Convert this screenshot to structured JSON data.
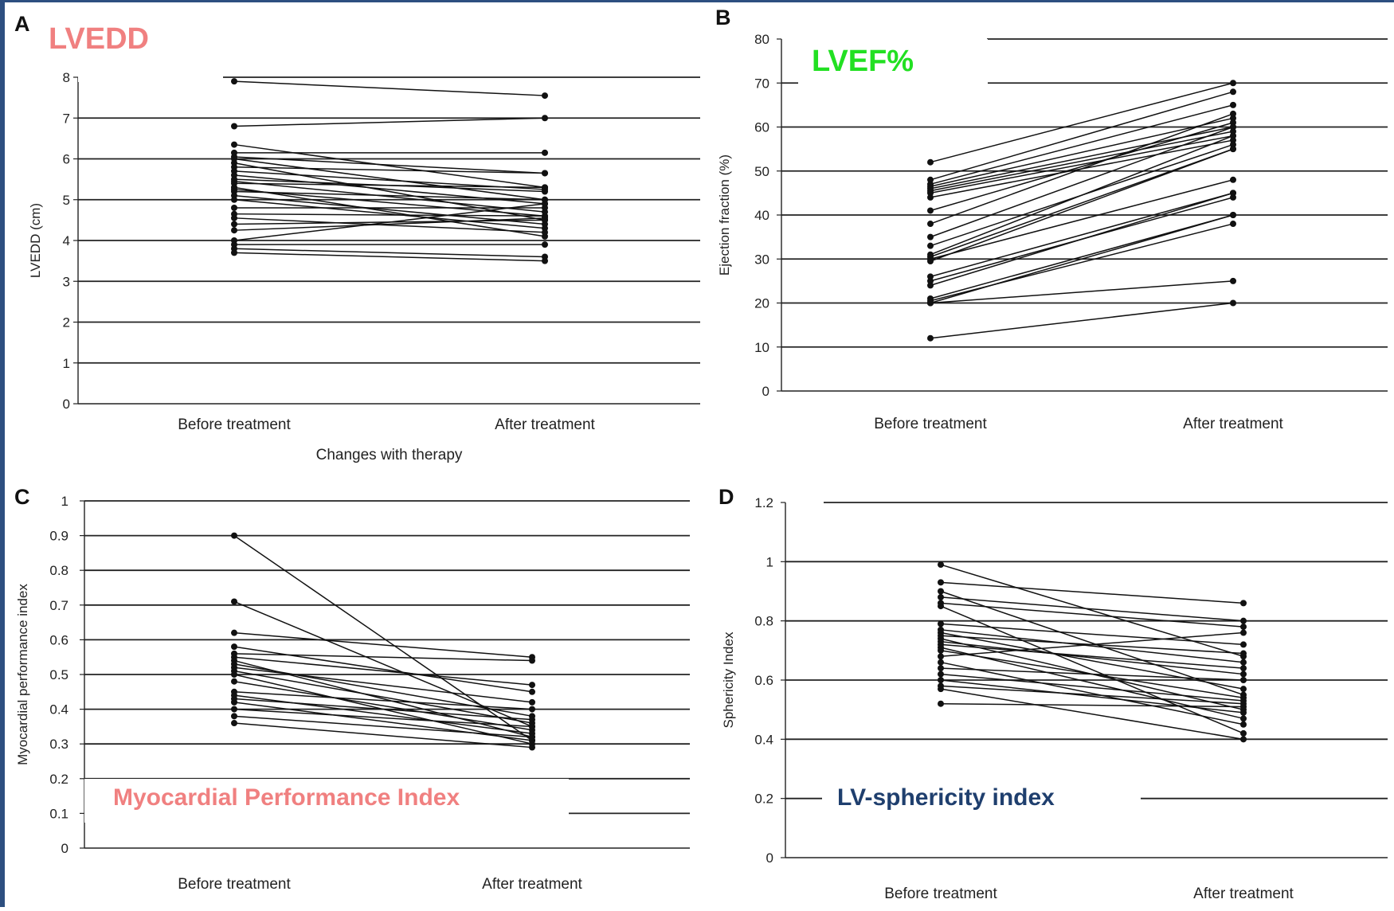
{
  "page": {
    "accent": "#2d4f80"
  },
  "chart_data": [
    {
      "id": "A",
      "type": "line",
      "panel_label": "A",
      "title": "LVEDD",
      "title_color": "#f08080",
      "ylabel": "LVEDD (cm)",
      "xlabel": "Changes with therapy",
      "categories": [
        "Before treatment",
        "After treatment"
      ],
      "ylim": [
        0,
        8
      ],
      "yticks": [
        0,
        1,
        2,
        3,
        4,
        5,
        6,
        7,
        8
      ],
      "tick_labels": [
        "0",
        "1",
        "2",
        "3",
        "4",
        "5",
        "6",
        "7",
        "8"
      ],
      "grid": true,
      "pairs": [
        [
          7.9,
          7.55
        ],
        [
          6.8,
          7.0
        ],
        [
          6.35,
          5.3
        ],
        [
          6.15,
          6.15
        ],
        [
          6.05,
          5.65
        ],
        [
          6.0,
          5.0
        ],
        [
          5.9,
          4.5
        ],
        [
          5.8,
          5.65
        ],
        [
          5.7,
          5.25
        ],
        [
          5.6,
          4.9
        ],
        [
          5.5,
          5.2
        ],
        [
          5.45,
          4.7
        ],
        [
          5.4,
          5.3
        ],
        [
          5.3,
          4.1
        ],
        [
          5.25,
          4.6
        ],
        [
          5.2,
          5.0
        ],
        [
          5.1,
          4.4
        ],
        [
          5.0,
          4.3
        ],
        [
          4.8,
          4.8
        ],
        [
          4.65,
          4.6
        ],
        [
          4.55,
          4.2
        ],
        [
          4.4,
          4.5
        ],
        [
          4.25,
          4.55
        ],
        [
          4.0,
          4.9
        ],
        [
          3.9,
          3.9
        ],
        [
          3.8,
          3.6
        ],
        [
          3.7,
          3.5
        ]
      ]
    },
    {
      "id": "B",
      "type": "line",
      "panel_label": "B",
      "title": "LVEF%",
      "title_color": "#22e022",
      "ylabel": "Ejection fraction (%)",
      "xlabel": "",
      "categories": [
        "Before treatment",
        "After treatment"
      ],
      "ylim": [
        0,
        80
      ],
      "yticks": [
        0,
        10,
        20,
        30,
        40,
        50,
        60,
        70,
        80
      ],
      "tick_labels": [
        "0",
        "10",
        "20",
        "30",
        "40",
        "50",
        "60",
        "70",
        "80"
      ],
      "grid": true,
      "pairs": [
        [
          52,
          70
        ],
        [
          48,
          68
        ],
        [
          47,
          65
        ],
        [
          46.5,
          62
        ],
        [
          46,
          60
        ],
        [
          45.5,
          59
        ],
        [
          45,
          58
        ],
        [
          44,
          57
        ],
        [
          41,
          61
        ],
        [
          38,
          63
        ],
        [
          35,
          60
        ],
        [
          33,
          56
        ],
        [
          31,
          58
        ],
        [
          30.5,
          55
        ],
        [
          30,
          48
        ],
        [
          29.5,
          55
        ],
        [
          26,
          45
        ],
        [
          25,
          44
        ],
        [
          24,
          45
        ],
        [
          21,
          40
        ],
        [
          20.5,
          38
        ],
        [
          20,
          40
        ],
        [
          20,
          25
        ],
        [
          12,
          20
        ]
      ]
    },
    {
      "id": "C",
      "type": "line",
      "panel_label": "C",
      "title": "Myocardial Performance Index",
      "title_color": "#f08080",
      "ylabel": "Myocardial performance index",
      "xlabel": "",
      "categories": [
        "Before treatment",
        "After treatment"
      ],
      "ylim": [
        0,
        1
      ],
      "yticks": [
        0,
        0.1,
        0.2,
        0.3,
        0.4,
        0.5,
        0.6,
        0.7,
        0.8,
        0.9,
        1
      ],
      "tick_labels": [
        "0",
        "0.1",
        "0.2",
        "0.3",
        "0.4",
        "0.5",
        "0.6",
        "0.7",
        "0.8",
        "0.9",
        "1"
      ],
      "grid": true,
      "pairs": [
        [
          0.9,
          0.31
        ],
        [
          0.71,
          0.35
        ],
        [
          0.62,
          0.55
        ],
        [
          0.58,
          0.45
        ],
        [
          0.56,
          0.54
        ],
        [
          0.55,
          0.47
        ],
        [
          0.54,
          0.32
        ],
        [
          0.53,
          0.38
        ],
        [
          0.52,
          0.42
        ],
        [
          0.51,
          0.36
        ],
        [
          0.5,
          0.3
        ],
        [
          0.48,
          0.34
        ],
        [
          0.45,
          0.4
        ],
        [
          0.44,
          0.33
        ],
        [
          0.43,
          0.37
        ],
        [
          0.42,
          0.31
        ],
        [
          0.4,
          0.35
        ],
        [
          0.38,
          0.32
        ],
        [
          0.36,
          0.29
        ]
      ]
    },
    {
      "id": "D",
      "type": "line",
      "panel_label": "D",
      "title": "LV-sphericity index",
      "title_color": "#1f3f6e",
      "ylabel": "Sphericity Index",
      "xlabel": "",
      "categories": [
        "Before treatment",
        "After treatment"
      ],
      "ylim": [
        0,
        1.2
      ],
      "yticks": [
        0,
        0.2,
        0.4,
        0.6,
        0.8,
        1,
        1.2
      ],
      "tick_labels": [
        "0",
        "0.2",
        "0.4",
        "0.6",
        "0.8",
        "1",
        "1.2"
      ],
      "grid": true,
      "pairs": [
        [
          0.99,
          0.68
        ],
        [
          0.93,
          0.86
        ],
        [
          0.9,
          0.55
        ],
        [
          0.88,
          0.8
        ],
        [
          0.86,
          0.78
        ],
        [
          0.85,
          0.42
        ],
        [
          0.79,
          0.72
        ],
        [
          0.77,
          0.66
        ],
        [
          0.76,
          0.57
        ],
        [
          0.75,
          0.69
        ],
        [
          0.74,
          0.5
        ],
        [
          0.73,
          0.62
        ],
        [
          0.72,
          0.64
        ],
        [
          0.71,
          0.47
        ],
        [
          0.7,
          0.54
        ],
        [
          0.68,
          0.76
        ],
        [
          0.66,
          0.45
        ],
        [
          0.64,
          0.6
        ],
        [
          0.62,
          0.53
        ],
        [
          0.6,
          0.49
        ],
        [
          0.58,
          0.52
        ],
        [
          0.57,
          0.4
        ],
        [
          0.52,
          0.51
        ]
      ]
    }
  ]
}
